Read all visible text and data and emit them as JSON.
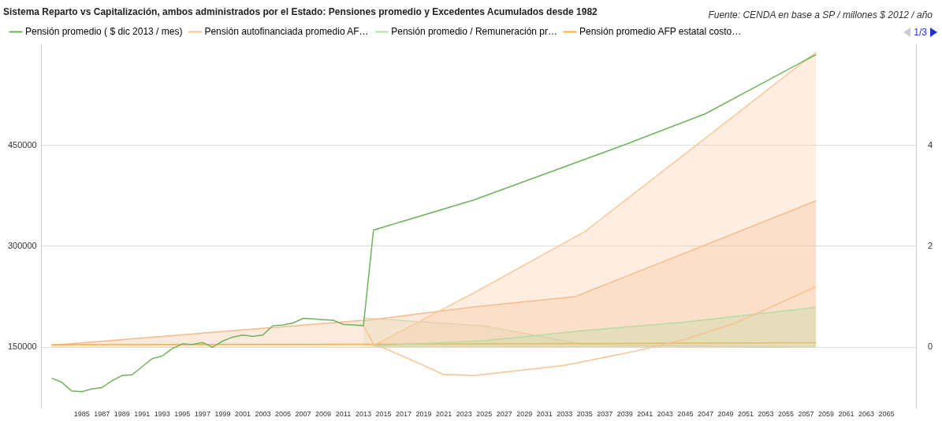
{
  "chart_data": {
    "type": "line",
    "title": "Sistema Reparto vs Capitalización, ambos administrados por el Estado: Pensiones promedio y Excedentes Acumulados desde 1982",
    "annotations": [
      "Fuente: CENDA en base a SP / millones $ 2012 / año",
      "1/3"
    ],
    "xlim": [
      1981,
      2068
    ],
    "xticks": [
      1985,
      1987,
      1989,
      1991,
      1993,
      1995,
      1997,
      1999,
      2001,
      2003,
      2005,
      2007,
      2009,
      2011,
      2013,
      2015,
      2017,
      2019,
      2021,
      2023,
      2025,
      2027,
      2029,
      2031,
      2033,
      2035,
      2037,
      2039,
      2041,
      2043,
      2045,
      2047,
      2049,
      2051,
      2053,
      2055,
      2057,
      2059,
      2061,
      2063,
      2065
    ],
    "ylim": [
      60000,
      600000
    ],
    "yticks": [
      150000,
      300000,
      450000
    ],
    "y2lim": [
      -1.2,
      6
    ],
    "y2ticks": [
      0,
      2,
      4
    ],
    "grid": "y",
    "legend": "top left",
    "marker": "none",
    "line_style": "solid",
    "series": [
      {
        "name": "Pensión promedio ( $ dic 2013 / mes)",
        "type": "line",
        "color": "#6fb35a",
        "x": [
          1982,
          1983,
          1984,
          1985,
          1986,
          1987,
          1988,
          1989,
          1990,
          1991,
          1992,
          1993,
          1994,
          1995,
          1996,
          1997,
          1998,
          1999,
          2000,
          2001,
          2002,
          2003,
          2004,
          2005,
          2006,
          2007,
          2008,
          2009,
          2010,
          2011,
          2012,
          2013,
          2014,
          2024,
          2039,
          2047,
          2058
        ],
        "values": [
          104000,
          98000,
          85000,
          84000,
          88000,
          90000,
          100000,
          108000,
          109000,
          121000,
          133000,
          137000,
          148000,
          155000,
          154000,
          157000,
          150000,
          159000,
          165000,
          168000,
          166000,
          168000,
          182000,
          183000,
          186000,
          193000,
          192000,
          191000,
          190000,
          184000,
          183000,
          182000,
          324000,
          369000,
          451000,
          497000,
          585000
        ]
      },
      {
        "name": "Pensión autofinanciada promedio AF…",
        "type": "line",
        "color": "#f7c292",
        "x": [
          2013,
          2014,
          2015,
          2019,
          2021,
          2022,
          2024,
          2033,
          2040,
          2045,
          2050,
          2058
        ],
        "values": [
          182000,
          155000,
          149000,
          123000,
          109000,
          109000,
          108000,
          123000,
          144000,
          162000,
          186000,
          240000
        ]
      },
      {
        "name": "Pensión promedio / Remuneración pr…",
        "type": "area",
        "axis": "y2",
        "color": "#b7dba4",
        "x": [
          2014,
          2025,
          2035,
          2045,
          2058
        ],
        "values": [
          0.03,
          0.13,
          0.33,
          0.5,
          0.79
        ]
      },
      {
        "name": "Pensión promedio AFP estatal costo…",
        "type": "line",
        "axis": "y2",
        "color": "#f5b041",
        "x": [
          1982,
          2014,
          2058
        ],
        "values": [
          0.05,
          0.06,
          0.09
        ]
      },
      {
        "type": "area",
        "axis": "y2",
        "color": "#f9c89b",
        "x": [
          2014,
          2024,
          2035,
          2046,
          2058
        ],
        "values": [
          0.03,
          1.08,
          2.29,
          3.99,
          5.85
        ]
      },
      {
        "type": "area",
        "axis": "y2",
        "color": "#f6b98a",
        "x": [
          1982,
          2014,
          2024,
          2034,
          2058
        ],
        "values": [
          0.04,
          0.55,
          0.8,
          1.0,
          2.9
        ]
      },
      {
        "type": "area",
        "axis": "y2",
        "color": "#cfe3c0",
        "x": [
          2013,
          2025,
          2035,
          2058
        ],
        "values": [
          0.58,
          0.42,
          0.05,
          0
        ]
      }
    ]
  }
}
